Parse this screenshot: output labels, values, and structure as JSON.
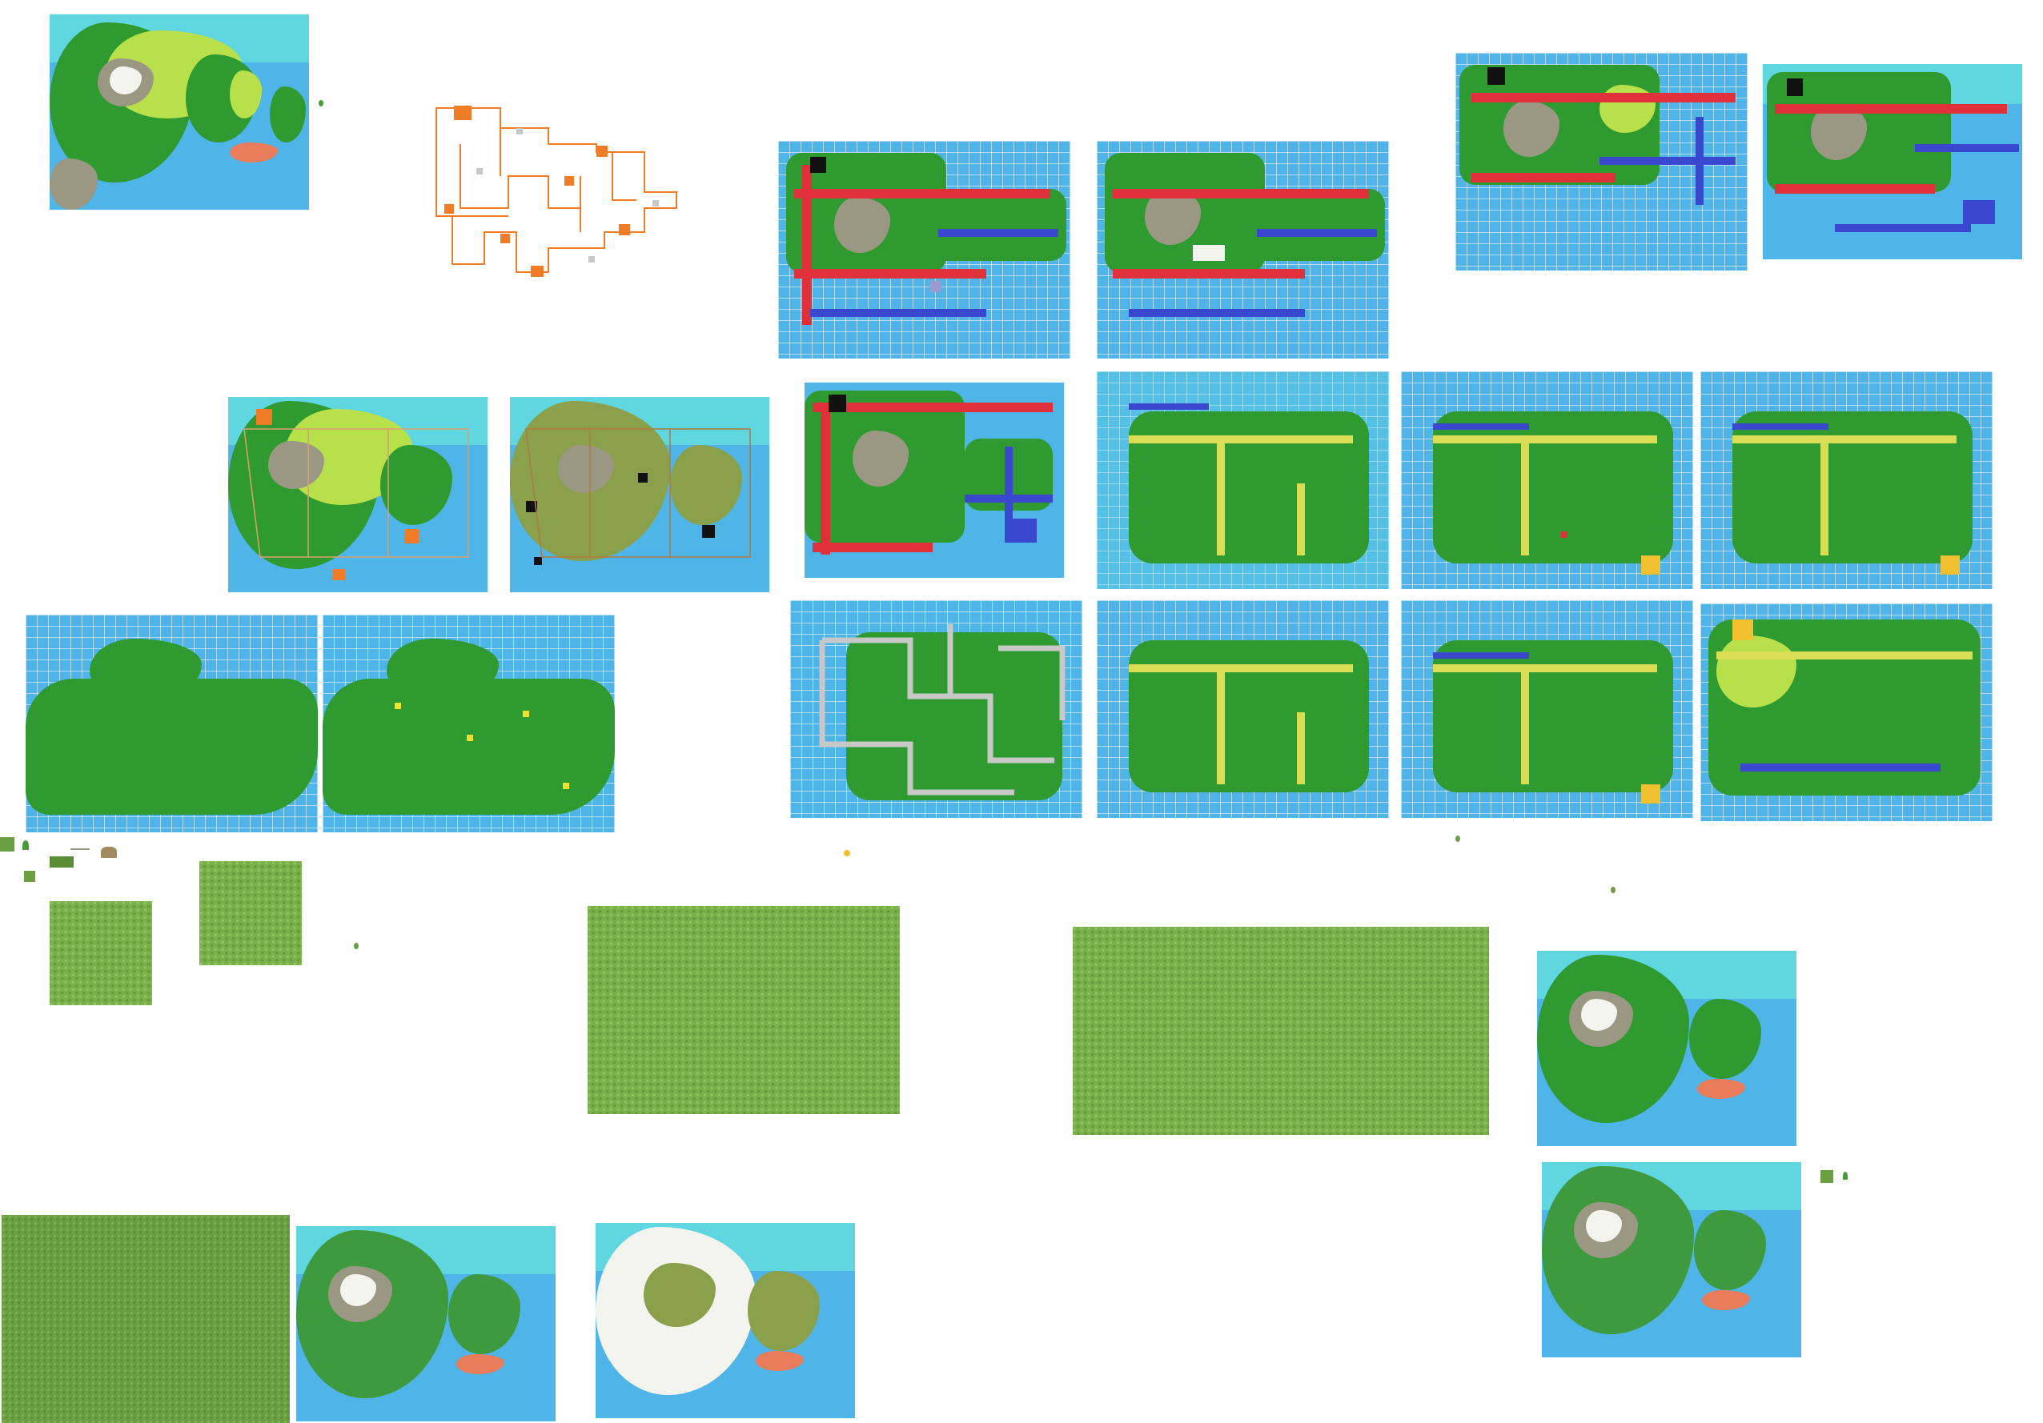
{
  "canvas": {
    "background": "#ffffff"
  },
  "palette": {
    "sea": "#4fb4e8",
    "shallow_sea": "#5fd6e0",
    "land": "#2f9a2f",
    "lime": "#b8e04a",
    "mountain": "#9a9882",
    "snow": "#f4f4ee",
    "route_red": "#e0303a",
    "route_blue": "#3a48d0",
    "route_yellow": "#d8dd54",
    "route_gray": "#c8c8c8",
    "town_black": "#111111",
    "lavender": "#9a9ad0",
    "coral": "#e97c5a",
    "orange": "#f07c28",
    "grass": "#78b14a"
  },
  "assets": [
    {
      "id": "region-illustrated-1",
      "kind": "illustrated-map"
    },
    {
      "id": "route-wireframe",
      "kind": "outline-map"
    },
    {
      "id": "grid-red-routes-1",
      "kind": "grid-map"
    },
    {
      "id": "grid-red-routes-2",
      "kind": "grid-map"
    },
    {
      "id": "grid-red-routes-3",
      "kind": "grid-map"
    },
    {
      "id": "grid-red-routes-4",
      "kind": "grid-map"
    },
    {
      "id": "region-overlay-orange",
      "kind": "illustrated-map"
    },
    {
      "id": "region-overlay-black",
      "kind": "illustrated-map"
    },
    {
      "id": "grid-red-routes-5",
      "kind": "grid-map"
    },
    {
      "id": "grid-yellow-routes-1",
      "kind": "grid-map"
    },
    {
      "id": "grid-yellow-routes-2",
      "kind": "grid-map"
    },
    {
      "id": "grid-yellow-routes-3",
      "kind": "grid-map"
    },
    {
      "id": "grid-landmass-1",
      "kind": "grid-map"
    },
    {
      "id": "grid-landmass-2",
      "kind": "grid-map"
    },
    {
      "id": "grid-gray-routes",
      "kind": "grid-map"
    },
    {
      "id": "grid-yellow-routes-4",
      "kind": "grid-map"
    },
    {
      "id": "grid-yellow-routes-5",
      "kind": "grid-map"
    },
    {
      "id": "grid-yellow-routes-6",
      "kind": "grid-map"
    },
    {
      "id": "grass-tile-1",
      "kind": "texture"
    },
    {
      "id": "grass-tile-2",
      "kind": "texture"
    },
    {
      "id": "grass-tile-3",
      "kind": "texture"
    },
    {
      "id": "grass-tile-4",
      "kind": "texture"
    },
    {
      "id": "grass-tile-5",
      "kind": "texture"
    },
    {
      "id": "region-illustrated-2",
      "kind": "illustrated-map"
    },
    {
      "id": "region-illustrated-3",
      "kind": "illustrated-map"
    },
    {
      "id": "region-illustrated-4",
      "kind": "illustrated-map"
    },
    {
      "id": "region-snow",
      "kind": "illustrated-map"
    }
  ]
}
